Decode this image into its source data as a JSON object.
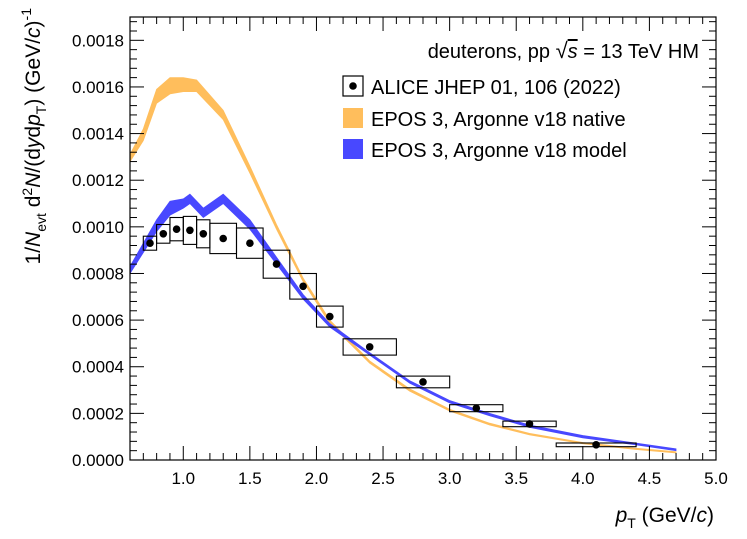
{
  "chart_data": {
    "type": "line",
    "title": "deuterons, pp √s = 13 TeV HM",
    "title_parts": {
      "prefix": "deuterons, pp ",
      "sqrt_var": "s",
      "suffix": " = 13 TeV HM"
    },
    "xlabel": "p_T (GeV/c)",
    "xlabel_parts": {
      "var": "p",
      "sub": "T",
      "rest": " (GeV/",
      "unit_italic": "c",
      "close": ")"
    },
    "ylabel": "1/N_evt d²N/(dy dp_T) (GeV/c)⁻¹",
    "ylabel_parts": {
      "a": "1/",
      "b": "N",
      "c": "evt",
      "d": " d",
      "e": "2",
      "f": "N",
      "g": "/(d",
      "h": "y",
      "i": "d",
      "j": "p",
      "k": "T",
      "l": ") (GeV/",
      "m": "c",
      "n": ")",
      "o": "-1"
    },
    "xlim": [
      0.6,
      5.0
    ],
    "ylim": [
      0.0,
      0.0019
    ],
    "x_ticks": [
      "1.0",
      "1.5",
      "2.0",
      "2.5",
      "3.0",
      "3.5",
      "4.0",
      "4.5",
      "5.0"
    ],
    "x_tick_values": [
      1.0,
      1.5,
      2.0,
      2.5,
      3.0,
      3.5,
      4.0,
      4.5,
      5.0
    ],
    "y_ticks": [
      "0.0000",
      "0.0002",
      "0.0004",
      "0.0006",
      "0.0008",
      "0.0010",
      "0.0012",
      "0.0014",
      "0.0016",
      "0.0018"
    ],
    "y_tick_values": [
      0.0,
      0.0002,
      0.0004,
      0.0006,
      0.0008,
      0.001,
      0.0012,
      0.0014,
      0.0016,
      0.0018
    ],
    "legend_position": "top-right",
    "legend": [
      "ALICE JHEP 01, 106 (2022)",
      "EPOS 3, Argonne v18 native",
      "EPOS 3, Argonne v18 model"
    ],
    "colors": {
      "native": "#ffbe5c",
      "model": "#4848ff",
      "data": "#000000",
      "axis": "#000000"
    },
    "series": [
      {
        "name": "ALICE JHEP 01, 106 (2022)",
        "kind": "points_with_sys_boxes",
        "x": [
          0.75,
          0.85,
          0.95,
          1.05,
          1.15,
          1.3,
          1.5,
          1.7,
          1.9,
          2.1,
          2.4,
          2.8,
          3.2,
          3.6,
          4.1
        ],
        "xerr": [
          0.05,
          0.05,
          0.05,
          0.05,
          0.05,
          0.1,
          0.1,
          0.1,
          0.1,
          0.1,
          0.2,
          0.2,
          0.2,
          0.2,
          0.3
        ],
        "y": [
          0.00093,
          0.00097,
          0.00099,
          0.000985,
          0.00097,
          0.00095,
          0.00093,
          0.00084,
          0.000745,
          0.000615,
          0.000485,
          0.000335,
          0.000222,
          0.000155,
          6.5e-05
        ],
        "sys": [
          3e-05,
          4e-05,
          5e-05,
          6e-05,
          6e-05,
          6.5e-05,
          6.5e-05,
          6e-05,
          5.5e-05,
          4.5e-05,
          3.5e-05,
          2.5e-05,
          1.5e-05,
          1.2e-05,
          8e-06
        ]
      },
      {
        "name": "EPOS 3, Argonne v18 native",
        "kind": "band",
        "x": [
          0.6,
          0.7,
          0.8,
          0.9,
          1.0,
          1.1,
          1.3,
          1.5,
          1.7,
          1.9,
          2.1,
          2.4,
          2.7,
          3.0,
          3.3,
          3.6,
          4.0,
          4.4,
          4.7
        ],
        "y_low": [
          0.00128,
          0.00137,
          0.00153,
          0.00157,
          0.00158,
          0.00158,
          0.00146,
          0.00123,
          0.00099,
          0.000765,
          0.000585,
          0.000415,
          0.000295,
          0.00021,
          0.00015,
          0.000108,
          7e-05,
          4.5e-05,
          3e-05
        ],
        "y_high": [
          0.00131,
          0.00142,
          0.00159,
          0.00164,
          0.00164,
          0.00163,
          0.0015,
          0.00126,
          0.00101,
          0.00078,
          0.0006,
          0.000425,
          0.000305,
          0.000218,
          0.000158,
          0.000114,
          7.5e-05,
          5e-05,
          3.5e-05
        ]
      },
      {
        "name": "EPOS 3, Argonne v18 model",
        "kind": "band",
        "x": [
          0.6,
          0.7,
          0.8,
          0.9,
          1.0,
          1.05,
          1.15,
          1.3,
          1.5,
          1.7,
          1.9,
          2.1,
          2.4,
          2.7,
          3.0,
          3.3,
          3.6,
          4.0,
          4.4,
          4.7
        ],
        "y_low": [
          0.0008,
          0.00089,
          0.00098,
          0.00105,
          0.00108,
          0.0011,
          0.00104,
          0.0011,
          0.00099,
          0.00084,
          0.00069,
          0.00057,
          0.00045,
          0.00033,
          0.000245,
          0.00019,
          0.00014,
          9.5e-05,
          6.5e-05,
          4e-05
        ],
        "y_high": [
          0.00083,
          0.00093,
          0.00103,
          0.00111,
          0.00112,
          0.00114,
          0.00108,
          0.00114,
          0.00103,
          0.00087,
          0.00071,
          0.000585,
          0.00046,
          0.00034,
          0.000255,
          0.0002,
          0.00015,
          0.000105,
          7.2e-05,
          4.8e-05
        ]
      }
    ]
  }
}
